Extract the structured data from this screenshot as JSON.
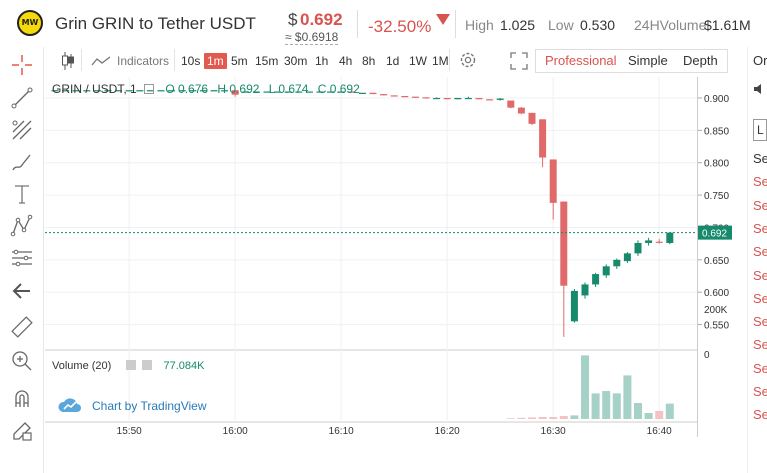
{
  "header": {
    "logo_text": "MW",
    "pair_title": "Grin GRIN  to Tether USDT",
    "price_currency": "$",
    "price": "0.692",
    "price_usd": "≈ $0.6918",
    "change": "-32.50%",
    "high_label": "High",
    "high_value": "1.025",
    "low_label": "Low",
    "low_value": "0.530",
    "volume_label": "24HVolume",
    "volume_value": "$1.61M"
  },
  "toolbar": {
    "indicators_label": "Indicators",
    "intervals": [
      "10s",
      "1m",
      "5m",
      "15m",
      "30m",
      "1h",
      "4h",
      "8h",
      "1d",
      "1W",
      "1M"
    ],
    "active_interval": "1m",
    "views": [
      "Professional",
      "Simple",
      "Depth"
    ],
    "active_view": "Professional"
  },
  "left_tools": [
    "crosshair-icon",
    "trend-line-icon",
    "fib-icon",
    "brush-icon",
    "text-icon",
    "pattern-icon",
    "measure-grid-icon",
    "back-arrow-icon",
    "ruler-icon",
    "zoom-in-icon",
    "magnet-icon",
    "lock-pencil-icon"
  ],
  "legend": {
    "symbol": "GRIN / USDT, 1",
    "o": "O 0.676",
    "h": "H 0.692",
    "l": "L 0.674",
    "c": "C 0.692"
  },
  "volume_legend": {
    "label": "Volume (20)",
    "value": "77.084K"
  },
  "tv_badge": "Chart by TradingView",
  "right_col": {
    "top_label": "Ord",
    "items": [
      "Se",
      "Se",
      "Se",
      "Se",
      "Se",
      "Se",
      "Se",
      "Se",
      "Se",
      "Se",
      "Se",
      "Se"
    ]
  },
  "colors": {
    "up": "#168a6b",
    "down": "#e06a6a",
    "accent": "#e25a4e"
  },
  "chart_data": {
    "type": "candlestick",
    "price_axis_ticks": [
      "0.900",
      "0.850",
      "0.800",
      "0.750",
      "0.700",
      "0.650",
      "0.600",
      "0.550"
    ],
    "time_axis_ticks": [
      "15:50",
      "16:00",
      "16:10",
      "16:20",
      "16:30",
      "16:40"
    ],
    "last_price_label": "0.692",
    "volume_axis_ticks": [
      "200K",
      "0"
    ],
    "ylim": [
      0.52,
      0.92
    ],
    "candles": [
      {
        "t": "15:43",
        "o": 0.912,
        "h": 0.912,
        "l": 0.912,
        "c": 0.912,
        "v": 0
      },
      {
        "t": "15:44",
        "o": 0.912,
        "h": 0.912,
        "l": 0.912,
        "c": 0.912,
        "v": 0
      },
      {
        "t": "15:45",
        "o": 0.912,
        "h": 0.912,
        "l": 0.912,
        "c": 0.912,
        "v": 0
      },
      {
        "t": "15:46",
        "o": 0.912,
        "h": 0.912,
        "l": 0.912,
        "c": 0.912,
        "v": 0
      },
      {
        "t": "15:47",
        "o": 0.912,
        "h": 0.912,
        "l": 0.912,
        "c": 0.912,
        "v": 0
      },
      {
        "t": "15:48",
        "o": 0.912,
        "h": 0.912,
        "l": 0.912,
        "c": 0.912,
        "v": 0
      },
      {
        "t": "15:49",
        "o": 0.912,
        "h": 0.912,
        "l": 0.912,
        "c": 0.912,
        "v": 0
      },
      {
        "t": "15:50",
        "o": 0.912,
        "h": 0.912,
        "l": 0.912,
        "c": 0.912,
        "v": 0
      },
      {
        "t": "15:51",
        "o": 0.912,
        "h": 0.912,
        "l": 0.912,
        "c": 0.912,
        "v": 0
      },
      {
        "t": "15:52",
        "o": 0.912,
        "h": 0.912,
        "l": 0.912,
        "c": 0.912,
        "v": 0
      },
      {
        "t": "15:53",
        "o": 0.912,
        "h": 0.912,
        "l": 0.912,
        "c": 0.912,
        "v": 0
      },
      {
        "t": "15:54",
        "o": 0.912,
        "h": 0.912,
        "l": 0.912,
        "c": 0.912,
        "v": 0
      },
      {
        "t": "15:55",
        "o": 0.912,
        "h": 0.912,
        "l": 0.912,
        "c": 0.912,
        "v": 0
      },
      {
        "t": "15:56",
        "o": 0.912,
        "h": 0.912,
        "l": 0.912,
        "c": 0.912,
        "v": 0
      },
      {
        "t": "15:57",
        "o": 0.912,
        "h": 0.912,
        "l": 0.912,
        "c": 0.912,
        "v": 0
      },
      {
        "t": "15:58",
        "o": 0.912,
        "h": 0.912,
        "l": 0.912,
        "c": 0.912,
        "v": 0
      },
      {
        "t": "15:59",
        "o": 0.912,
        "h": 0.912,
        "l": 0.912,
        "c": 0.912,
        "v": 0
      },
      {
        "t": "16:00",
        "o": 0.912,
        "h": 0.912,
        "l": 0.902,
        "c": 0.905,
        "v": 0
      },
      {
        "t": "16:01",
        "o": 0.91,
        "h": 0.91,
        "l": 0.91,
        "c": 0.91,
        "v": 0
      },
      {
        "t": "16:02",
        "o": 0.91,
        "h": 0.91,
        "l": 0.91,
        "c": 0.91,
        "v": 0
      },
      {
        "t": "16:03",
        "o": 0.91,
        "h": 0.91,
        "l": 0.91,
        "c": 0.91,
        "v": 0
      },
      {
        "t": "16:04",
        "o": 0.91,
        "h": 0.91,
        "l": 0.91,
        "c": 0.91,
        "v": 0
      },
      {
        "t": "16:05",
        "o": 0.91,
        "h": 0.91,
        "l": 0.91,
        "c": 0.91,
        "v": 0
      },
      {
        "t": "16:06",
        "o": 0.91,
        "h": 0.91,
        "l": 0.91,
        "c": 0.91,
        "v": 0
      },
      {
        "t": "16:07",
        "o": 0.91,
        "h": 0.91,
        "l": 0.91,
        "c": 0.91,
        "v": 0
      },
      {
        "t": "16:08",
        "o": 0.91,
        "h": 0.91,
        "l": 0.91,
        "c": 0.91,
        "v": 0
      },
      {
        "t": "16:09",
        "o": 0.91,
        "h": 0.91,
        "l": 0.91,
        "c": 0.91,
        "v": 0
      },
      {
        "t": "16:10",
        "o": 0.91,
        "h": 0.91,
        "l": 0.91,
        "c": 0.91,
        "v": 0
      },
      {
        "t": "16:11",
        "o": 0.91,
        "h": 0.91,
        "l": 0.908,
        "c": 0.908,
        "v": 0
      },
      {
        "t": "16:12",
        "o": 0.908,
        "h": 0.908,
        "l": 0.908,
        "c": 0.908,
        "v": 0
      },
      {
        "t": "16:13",
        "o": 0.908,
        "h": 0.908,
        "l": 0.906,
        "c": 0.906,
        "v": 0
      },
      {
        "t": "16:14",
        "o": 0.906,
        "h": 0.906,
        "l": 0.904,
        "c": 0.904,
        "v": 0
      },
      {
        "t": "16:15",
        "o": 0.904,
        "h": 0.904,
        "l": 0.903,
        "c": 0.903,
        "v": 0
      },
      {
        "t": "16:16",
        "o": 0.903,
        "h": 0.903,
        "l": 0.902,
        "c": 0.902,
        "v": 0
      },
      {
        "t": "16:17",
        "o": 0.902,
        "h": 0.902,
        "l": 0.901,
        "c": 0.901,
        "v": 0
      },
      {
        "t": "16:18",
        "o": 0.901,
        "h": 0.901,
        "l": 0.9,
        "c": 0.9,
        "v": 0
      },
      {
        "t": "16:19",
        "o": 0.9,
        "h": 0.901,
        "l": 0.9,
        "c": 0.9,
        "v": 0
      },
      {
        "t": "16:20",
        "o": 0.9,
        "h": 0.9,
        "l": 0.898,
        "c": 0.898,
        "v": 0
      },
      {
        "t": "16:21",
        "o": 0.898,
        "h": 0.9,
        "l": 0.898,
        "c": 0.9,
        "v": 0
      },
      {
        "t": "16:22",
        "o": 0.9,
        "h": 0.902,
        "l": 0.9,
        "c": 0.9,
        "v": 0
      },
      {
        "t": "16:23",
        "o": 0.9,
        "h": 0.9,
        "l": 0.898,
        "c": 0.898,
        "v": 0
      },
      {
        "t": "16:24",
        "o": 0.898,
        "h": 0.898,
        "l": 0.897,
        "c": 0.897,
        "v": 0
      },
      {
        "t": "16:25",
        "o": 0.897,
        "h": 0.9,
        "l": 0.896,
        "c": 0.899,
        "v": 0
      },
      {
        "t": "16:26",
        "o": 0.896,
        "h": 0.896,
        "l": 0.884,
        "c": 0.885,
        "v": 4
      },
      {
        "t": "16:27",
        "o": 0.885,
        "h": 0.886,
        "l": 0.875,
        "c": 0.876,
        "v": 6
      },
      {
        "t": "16:28",
        "o": 0.877,
        "h": 0.877,
        "l": 0.858,
        "c": 0.86,
        "v": 8
      },
      {
        "t": "16:29",
        "o": 0.867,
        "h": 0.867,
        "l": 0.793,
        "c": 0.808,
        "v": 10
      },
      {
        "t": "16:30",
        "o": 0.805,
        "h": 0.805,
        "l": 0.712,
        "c": 0.738,
        "v": 10
      },
      {
        "t": "16:31",
        "o": 0.74,
        "h": 0.74,
        "l": 0.531,
        "c": 0.61,
        "v": 15
      },
      {
        "t": "16:32",
        "o": 0.555,
        "h": 0.605,
        "l": 0.553,
        "c": 0.602,
        "v": 18
      },
      {
        "t": "16:33",
        "o": 0.595,
        "h": 0.615,
        "l": 0.59,
        "c": 0.612,
        "v": 318
      },
      {
        "t": "16:34",
        "o": 0.612,
        "h": 0.63,
        "l": 0.608,
        "c": 0.628,
        "v": 128
      },
      {
        "t": "16:35",
        "o": 0.626,
        "h": 0.643,
        "l": 0.622,
        "c": 0.64,
        "v": 140
      },
      {
        "t": "16:36",
        "o": 0.64,
        "h": 0.652,
        "l": 0.636,
        "c": 0.65,
        "v": 128
      },
      {
        "t": "16:37",
        "o": 0.648,
        "h": 0.662,
        "l": 0.645,
        "c": 0.66,
        "v": 218
      },
      {
        "t": "16:38",
        "o": 0.66,
        "h": 0.68,
        "l": 0.656,
        "c": 0.676,
        "v": 80
      },
      {
        "t": "16:39",
        "o": 0.676,
        "h": 0.684,
        "l": 0.672,
        "c": 0.68,
        "v": 30
      },
      {
        "t": "16:40",
        "o": 0.678,
        "h": 0.682,
        "l": 0.675,
        "c": 0.677,
        "v": 40
      },
      {
        "t": "16:41",
        "o": 0.676,
        "h": 0.692,
        "l": 0.674,
        "c": 0.692,
        "v": 77
      }
    ]
  }
}
